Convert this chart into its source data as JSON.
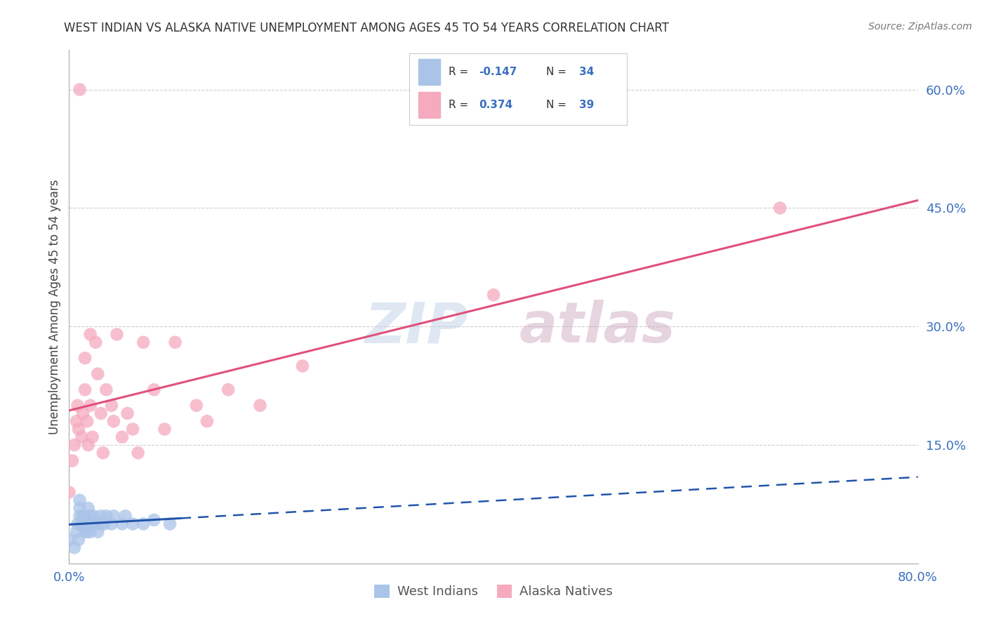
{
  "title": "WEST INDIAN VS ALASKA NATIVE UNEMPLOYMENT AMONG AGES 45 TO 54 YEARS CORRELATION CHART",
  "source": "Source: ZipAtlas.com",
  "ylabel": "Unemployment Among Ages 45 to 54 years",
  "xlim": [
    0.0,
    0.8
  ],
  "ylim": [
    0.0,
    0.65
  ],
  "xticks": [
    0.0,
    0.1,
    0.2,
    0.3,
    0.4,
    0.5,
    0.6,
    0.7,
    0.8
  ],
  "xticklabels": [
    "0.0%",
    "",
    "",
    "",
    "",
    "",
    "",
    "",
    "80.0%"
  ],
  "yticks_right": [
    0.0,
    0.15,
    0.3,
    0.45,
    0.6
  ],
  "yticklabels_right": [
    "",
    "15.0%",
    "30.0%",
    "45.0%",
    "60.0%"
  ],
  "grid_color": "#d0d0d0",
  "background_color": "#ffffff",
  "west_indian_color": "#aac4e8",
  "alaska_native_color": "#f5aabe",
  "west_indian_line_color": "#2255aa",
  "alaska_native_line_color": "#e0507a",
  "west_indian_R": -0.147,
  "west_indian_N": 34,
  "alaska_native_R": 0.374,
  "alaska_native_N": 39,
  "legend_label_west": "West Indians",
  "legend_label_alaska": "Alaska Natives",
  "watermark_zip": "ZIP",
  "watermark_atlas": "atlas",
  "west_indian_x": [
    0.0,
    0.005,
    0.007,
    0.008,
    0.009,
    0.01,
    0.01,
    0.01,
    0.012,
    0.013,
    0.015,
    0.015,
    0.015,
    0.017,
    0.018,
    0.018,
    0.02,
    0.02,
    0.022,
    0.023,
    0.025,
    0.027,
    0.03,
    0.03,
    0.033,
    0.035,
    0.04,
    0.042,
    0.05,
    0.053,
    0.06,
    0.07,
    0.08,
    0.095
  ],
  "west_indian_y": [
    0.03,
    0.02,
    0.04,
    0.05,
    0.03,
    0.06,
    0.07,
    0.08,
    0.05,
    0.06,
    0.04,
    0.05,
    0.06,
    0.04,
    0.05,
    0.07,
    0.04,
    0.06,
    0.05,
    0.06,
    0.05,
    0.04,
    0.05,
    0.06,
    0.05,
    0.06,
    0.05,
    0.06,
    0.05,
    0.06,
    0.05,
    0.05,
    0.055,
    0.05
  ],
  "alaska_native_x": [
    0.0,
    0.003,
    0.005,
    0.007,
    0.008,
    0.009,
    0.01,
    0.012,
    0.013,
    0.015,
    0.015,
    0.017,
    0.018,
    0.02,
    0.02,
    0.022,
    0.025,
    0.027,
    0.03,
    0.032,
    0.035,
    0.04,
    0.042,
    0.045,
    0.05,
    0.055,
    0.06,
    0.065,
    0.07,
    0.08,
    0.09,
    0.1,
    0.12,
    0.13,
    0.15,
    0.18,
    0.22,
    0.4,
    0.67
  ],
  "alaska_native_y": [
    0.09,
    0.13,
    0.15,
    0.18,
    0.2,
    0.17,
    0.6,
    0.16,
    0.19,
    0.22,
    0.26,
    0.18,
    0.15,
    0.29,
    0.2,
    0.16,
    0.28,
    0.24,
    0.19,
    0.14,
    0.22,
    0.2,
    0.18,
    0.29,
    0.16,
    0.19,
    0.17,
    0.14,
    0.28,
    0.22,
    0.17,
    0.28,
    0.2,
    0.18,
    0.22,
    0.2,
    0.25,
    0.34,
    0.45
  ]
}
